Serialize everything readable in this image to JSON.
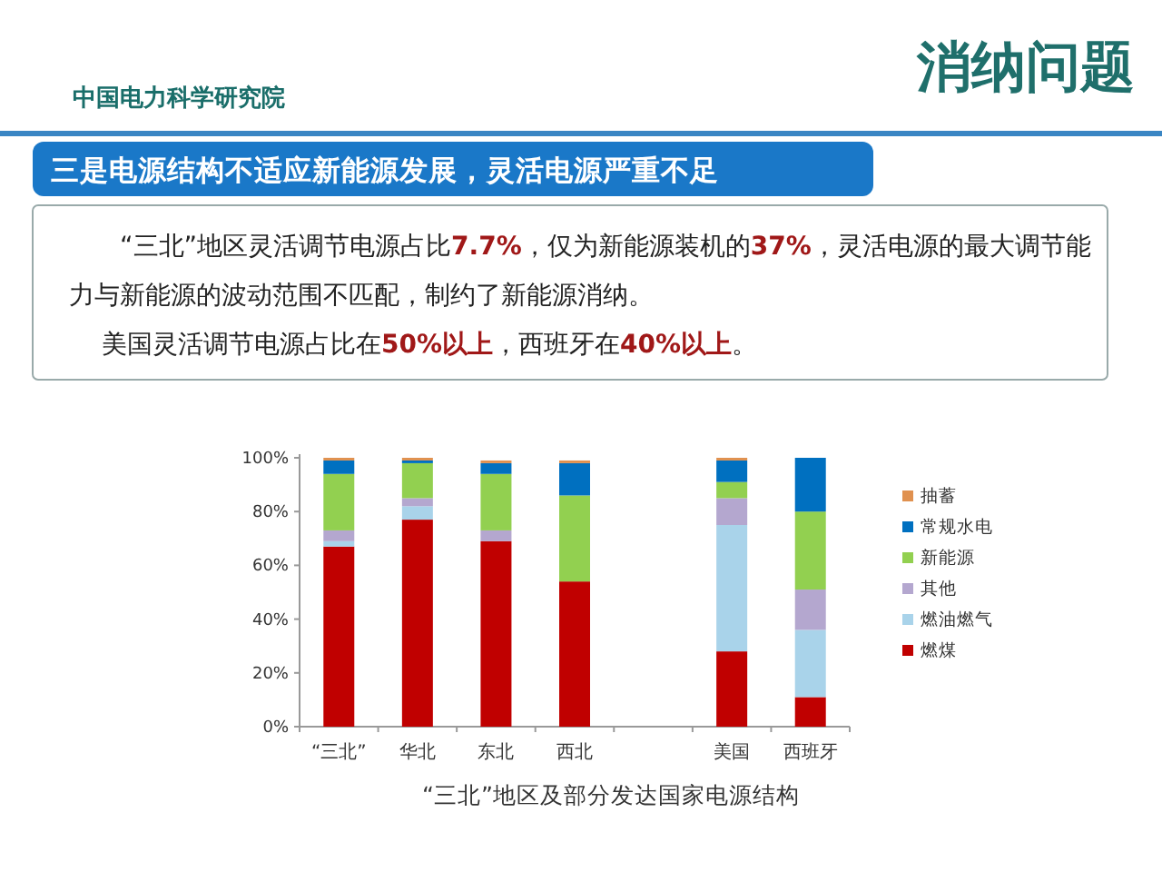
{
  "chart_data": {
    "type": "bar",
    "title": "消纳问题",
    "subtitle": "三是电源结构不适应新能源发展，灵活电源严重不足",
    "xlabel": "“三北”地区及部分发达国家电源结构",
    "annotations": [
      "中国电力科学研究院",
      "“三北”地区灵活调节电源占比7.7%，仅为新能源装机的37%，灵活电源的最大调节能力与新能源的波动范围不匹配，制约了新能源消纳。",
      "美国灵活调节电源占比在50%以上，西班牙在40%以上。"
    ],
    "categories": [
      "“三北”",
      "华北",
      "东北",
      "西北",
      null,
      "美国",
      "西班牙"
    ],
    "stacked": true,
    "series": [
      {
        "name": "燃煤",
        "color": "#c00000",
        "values": [
          67,
          77,
          69,
          54,
          null,
          28,
          11
        ]
      },
      {
        "name": "燃油燃气",
        "color": "#a9d3ea",
        "values": [
          2,
          5,
          null,
          null,
          null,
          47,
          25
        ]
      },
      {
        "name": "其他",
        "color": "#b4a7cf",
        "values": [
          4,
          3,
          4,
          0,
          null,
          10,
          15
        ]
      },
      {
        "name": "新能源",
        "color": "#92d050",
        "values": [
          21,
          13,
          21,
          32,
          null,
          6,
          29
        ]
      },
      {
        "name": "常规水电",
        "color": "#0070c0",
        "values": [
          5,
          1,
          4,
          12,
          null,
          8,
          20
        ]
      },
      {
        "name": "抽蓄",
        "color": "#e0914f",
        "values": [
          1,
          1,
          1,
          1,
          null,
          1,
          0
        ]
      }
    ],
    "ylim": [
      0,
      100
    ],
    "yticks": [
      {
        "value": 0,
        "label": "0%"
      },
      {
        "value": 20,
        "label": "20%"
      },
      {
        "value": 40,
        "label": "40%"
      },
      {
        "value": 60,
        "label": "60%"
      },
      {
        "value": 80,
        "label": "80%"
      },
      {
        "value": 100,
        "label": "100%"
      }
    ],
    "legend": "right"
  }
}
